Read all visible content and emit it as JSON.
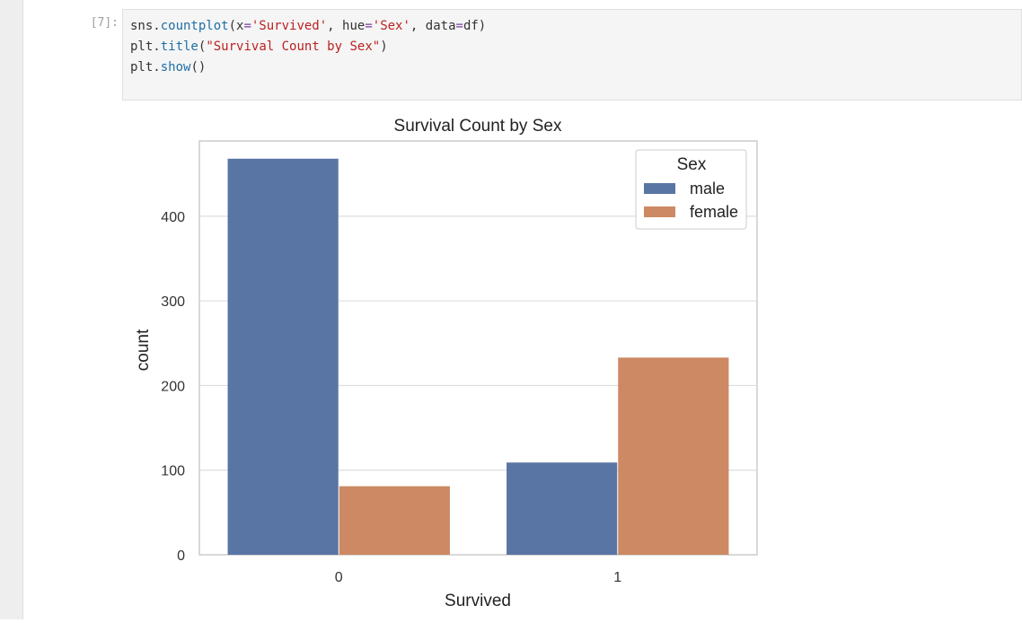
{
  "cell": {
    "prompt": "[7]:",
    "code_lines": [
      [
        [
          "name",
          "sns."
        ],
        [
          "fn",
          "countplot"
        ],
        [
          "name",
          "(x"
        ],
        [
          "op",
          "="
        ],
        [
          "str",
          "'Survived'"
        ],
        [
          "name",
          ", hue"
        ],
        [
          "op",
          "="
        ],
        [
          "str",
          "'Sex'"
        ],
        [
          "name",
          ", data"
        ],
        [
          "op",
          "="
        ],
        [
          "name",
          "df)"
        ]
      ],
      [
        [
          "name",
          "plt."
        ],
        [
          "fn",
          "title"
        ],
        [
          "name",
          "("
        ],
        [
          "str",
          "\"Survival Count by Sex\""
        ],
        [
          "name",
          ")"
        ]
      ],
      [
        [
          "name",
          "plt."
        ],
        [
          "fn",
          "show"
        ],
        [
          "name",
          "()"
        ]
      ]
    ]
  },
  "chart_data": {
    "type": "bar",
    "title": "Survival Count by Sex",
    "xlabel": "Survived",
    "ylabel": "count",
    "categories": [
      "0",
      "1"
    ],
    "series": [
      {
        "name": "male",
        "values": [
          468,
          109
        ],
        "color": "#5975a4"
      },
      {
        "name": "female",
        "values": [
          81,
          233
        ],
        "color": "#cc8963"
      }
    ],
    "yticks": [
      0,
      100,
      200,
      300,
      400
    ],
    "ylim": [
      0,
      489
    ],
    "grid": true,
    "legend": {
      "title": "Sex",
      "placement": "top-right"
    }
  }
}
